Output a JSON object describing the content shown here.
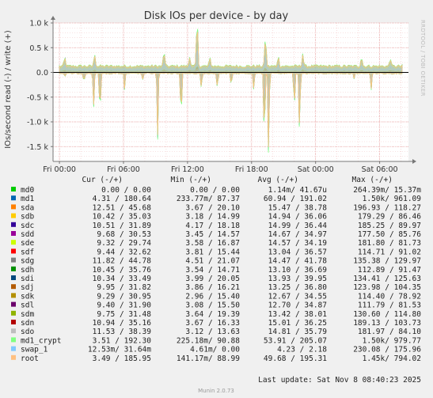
{
  "chart_data": {
    "type": "line",
    "title": "Disk IOs per device - by day",
    "ylabel": "IOs/second read (-) / write (+)",
    "watermark": "RRDTOOL / TOBI OETIKER",
    "ylim": [
      -1800,
      1000
    ],
    "yticks": [
      {
        "value": 1000,
        "label": "1.0 k"
      },
      {
        "value": 500,
        "label": "0.5 k"
      },
      {
        "value": 0,
        "label": "0.0"
      },
      {
        "value": -500,
        "label": "-0.5 k"
      },
      {
        "value": -1000,
        "label": "-1.0 k"
      },
      {
        "value": -1500,
        "label": "-1.5 k"
      }
    ],
    "xticks": [
      {
        "hour": 0,
        "label": "Fri 00:00"
      },
      {
        "hour": 6,
        "label": "Fri 06:00"
      },
      {
        "hour": 12,
        "label": "Fri 12:00"
      },
      {
        "hour": 18,
        "label": "Fri 18:00"
      },
      {
        "hour": 24,
        "label": "Sat 00:00"
      },
      {
        "hour": 30,
        "label": "Sat 06:00"
      }
    ],
    "xlim_hours": [
      -0.6,
      32.7
    ],
    "write_baseline": 130,
    "write_spikes": [
      {
        "hour": 0.5,
        "value": 180
      },
      {
        "hour": 3.3,
        "value": 250
      },
      {
        "hour": 9.8,
        "value": 310
      },
      {
        "hour": 12.2,
        "value": 210
      },
      {
        "hour": 12.9,
        "value": 960
      },
      {
        "hour": 14.1,
        "value": 170
      },
      {
        "hour": 19.3,
        "value": 620
      },
      {
        "hour": 20.5,
        "value": 210
      },
      {
        "hour": 22.8,
        "value": 260
      },
      {
        "hour": 28.3,
        "value": 200
      },
      {
        "hour": 31.0,
        "value": 170
      }
    ],
    "read_spikes": [
      {
        "hour": 0.5,
        "value": -60
      },
      {
        "hour": 2.3,
        "value": -180
      },
      {
        "hour": 3.2,
        "value": -690
      },
      {
        "hour": 3.8,
        "value": -950
      },
      {
        "hour": 6.1,
        "value": -340
      },
      {
        "hour": 7.8,
        "value": -140
      },
      {
        "hour": 9.2,
        "value": -1330
      },
      {
        "hour": 11.4,
        "value": -1020
      },
      {
        "hour": 13.3,
        "value": -330
      },
      {
        "hour": 14.8,
        "value": -300
      },
      {
        "hour": 16.1,
        "value": -270
      },
      {
        "hour": 18.2,
        "value": -330
      },
      {
        "hour": 19.2,
        "value": -1510
      },
      {
        "hour": 19.6,
        "value": -1720
      },
      {
        "hour": 22.0,
        "value": -760
      },
      {
        "hour": 22.5,
        "value": -1280
      },
      {
        "hour": 27.6,
        "value": -120
      },
      {
        "hour": 29.2,
        "value": -330
      }
    ],
    "table_header": {
      "cur": "Cur (-/+)",
      "min": "Min (-/+)",
      "avg": "Avg (-/+)",
      "max": "Max (-/+)"
    },
    "series": [
      {
        "name": "md0",
        "color": "#00cc00",
        "cur": "0.00 /  0.00",
        "min": "0.00 /  0.00",
        "avg": "1.14m/  41.67u",
        "max": "264.39m/  15.37m"
      },
      {
        "name": "md1",
        "color": "#0066b3",
        "cur": "4.31 / 180.64",
        "min": "233.77m/ 87.37",
        "avg": "60.94 / 191.02",
        "max": "1.50k/ 961.09"
      },
      {
        "name": "sda",
        "color": "#ff8000",
        "cur": "12.51 / 45.68",
        "min": "3.67 / 20.10",
        "avg": "15.47 /  38.78",
        "max": "196.93 / 118.27"
      },
      {
        "name": "sdb",
        "color": "#ffcc00",
        "cur": "10.42 / 35.03",
        "min": "3.18 / 14.99",
        "avg": "14.94 /  36.06",
        "max": "179.29 /  86.46"
      },
      {
        "name": "sdc",
        "color": "#330099",
        "cur": "10.51 / 31.89",
        "min": "4.17 / 18.18",
        "avg": "14.99 /  36.44",
        "max": "185.25 /  89.97"
      },
      {
        "name": "sdd",
        "color": "#990099",
        "cur": "9.68 / 30.53",
        "min": "3.45 / 14.57",
        "avg": "14.67 /  34.97",
        "max": "177.50 /  85.76"
      },
      {
        "name": "sde",
        "color": "#ccff00",
        "cur": "9.32 / 29.74",
        "min": "3.58 / 16.87",
        "avg": "14.57 /  34.19",
        "max": "181.80 /  81.73"
      },
      {
        "name": "sdf",
        "color": "#ff0000",
        "cur": "9.44 / 32.62",
        "min": "3.81 / 15.44",
        "avg": "13.04 /  36.57",
        "max": "114.71 /  91.02"
      },
      {
        "name": "sdg",
        "color": "#808080",
        "cur": "11.82 / 44.78",
        "min": "4.51 / 21.07",
        "avg": "14.47 /  41.78",
        "max": "135.38 / 129.97"
      },
      {
        "name": "sdh",
        "color": "#008f00",
        "cur": "10.45 / 35.76",
        "min": "3.54 / 14.71",
        "avg": "13.10 /  36.69",
        "max": "112.89 /  91.47"
      },
      {
        "name": "sdi",
        "color": "#00487d",
        "cur": "10.34 / 33.49",
        "min": "3.99 / 20.05",
        "avg": "13.93 /  39.95",
        "max": "134.41 / 125.63"
      },
      {
        "name": "sdj",
        "color": "#b35a00",
        "cur": "9.95 / 31.82",
        "min": "3.86 / 16.21",
        "avg": "13.25 /  36.80",
        "max": "123.98 / 104.35"
      },
      {
        "name": "sdk",
        "color": "#b38f00",
        "cur": "9.29 / 30.95",
        "min": "2.96 / 15.40",
        "avg": "12.67 /  34.55",
        "max": "114.40 /  78.92"
      },
      {
        "name": "sdl",
        "color": "#6b006b",
        "cur": "9.40 / 31.90",
        "min": "3.08 / 15.50",
        "avg": "12.70 /  34.87",
        "max": "111.79 /  81.53"
      },
      {
        "name": "sdm",
        "color": "#8fb300",
        "cur": "9.75 / 31.48",
        "min": "3.64 / 19.39",
        "avg": "13.42 /  38.01",
        "max": "130.60 / 114.80"
      },
      {
        "name": "sdn",
        "color": "#b30000",
        "cur": "10.94 / 35.16",
        "min": "3.67 / 16.33",
        "avg": "15.01 /  36.25",
        "max": "189.13 / 103.73"
      },
      {
        "name": "sdo",
        "color": "#bebebe",
        "cur": "11.53 / 38.39",
        "min": "3.12 / 13.63",
        "avg": "14.81 /  35.79",
        "max": "181.97 /  84.10"
      },
      {
        "name": "md1_crypt",
        "color": "#80ff80",
        "cur": "3.51 / 192.30",
        "min": "225.18m/ 90.88",
        "avg": "53.91 / 205.07",
        "max": "1.50k/ 979.77"
      },
      {
        "name": "swap_1",
        "color": "#80c9ff",
        "cur": "12.53m/ 31.64m",
        "min": "4.61m/  0.00",
        "avg": "4.23 /   2.18",
        "max": "230.08 / 175.96"
      },
      {
        "name": "root",
        "color": "#ffc080",
        "cur": "3.49 / 185.95",
        "min": "141.17m/ 88.99",
        "avg": "49.68 / 195.31",
        "max": "1.45k/ 794.02"
      }
    ],
    "last_update": "Last update: Sat Nov  8 08:40:23 2025",
    "footer": "Munin 2.0.73"
  }
}
